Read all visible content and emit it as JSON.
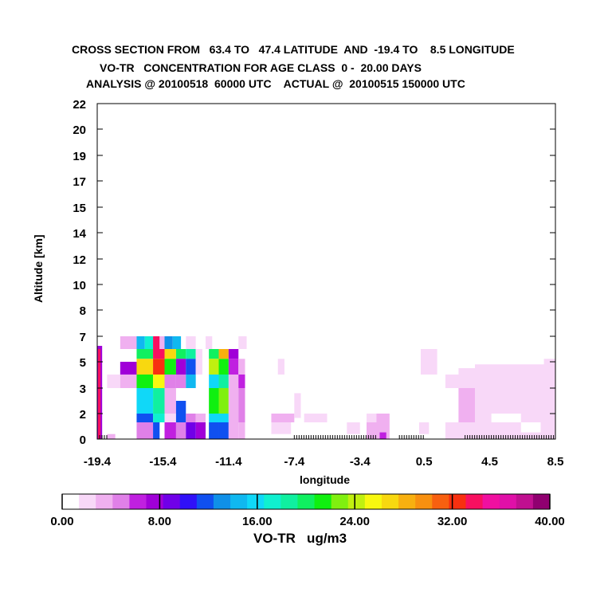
{
  "title": {
    "line1": "CROSS SECTION FROM   63.4 TO   47.4 LATITUDE  AND  -19.4 TO    8.5 LONGITUDE",
    "line2": "VO-TR   CONCENTRATION FOR AGE CLASS  0 -  20.00 DAYS",
    "line3": "ANALYSIS @ 20100518  60000 UTC    ACTUAL @  20100515 150000 UTC"
  },
  "axes": {
    "ylabel": "Altitude [km]",
    "xlabel": "longitude",
    "yticks": [
      "0",
      "1",
      "2",
      "3",
      "4",
      "5",
      "7",
      "8",
      "10",
      "12",
      "14",
      "15",
      "17",
      "19",
      "20",
      "22"
    ],
    "xticks": [
      "-19.4",
      "-15.4",
      "-11.4",
      "-7.4",
      "-3.4",
      "0.5",
      "4.5",
      "8.5"
    ]
  },
  "colorbar": {
    "label": "VO-TR   ug/m3",
    "tick_labels": [
      "0.00",
      "8.00",
      "16.00",
      "24.00",
      "32.00",
      "40.00"
    ],
    "colors": [
      "#ffffff",
      "#f8d8f8",
      "#f0b0f0",
      "#e080e8",
      "#c020e0",
      "#a000d8",
      "#7000e8",
      "#3010f8",
      "#1050f0",
      "#1090e8",
      "#10b8f0",
      "#10d8f8",
      "#10f0d0",
      "#10f0a0",
      "#10f060",
      "#10f010",
      "#80f010",
      "#c0f010",
      "#f8f810",
      "#f8d810",
      "#f8b010",
      "#f89010",
      "#f86010",
      "#f83010",
      "#f81060",
      "#f010a0",
      "#e010a8",
      "#c01090",
      "#900070"
    ]
  },
  "chart_data": {
    "type": "heatmap",
    "title": "CROSS SECTION FROM   63.4 TO   47.4 LATITUDE  AND  -19.4 TO    8.5 LONGITUDE",
    "xlabel": "longitude",
    "ylabel": "Altitude [km]",
    "xlim": [
      -19.4,
      8.5
    ],
    "ylim": [
      0,
      22
    ],
    "value_range": [
      0,
      40
    ],
    "units": "ug/m3",
    "cells": [
      {
        "x0": -19.4,
        "x1": -19.1,
        "y0": 0,
        "y1": 6.5,
        "c": "#a000d8"
      },
      {
        "x0": -19.35,
        "x1": -19.2,
        "y0": 0,
        "y1": 6.3,
        "c": "#f81060"
      },
      {
        "x0": -18.8,
        "x1": -18.3,
        "y0": 0,
        "y1": 0.3,
        "c": "#f0b0f0"
      },
      {
        "x0": -18.8,
        "x1": -18.0,
        "y0": 3,
        "y1": 4,
        "c": "#f8d8f8"
      },
      {
        "x0": -18.0,
        "x1": -17.0,
        "y0": 6.3,
        "y1": 7.1,
        "c": "#f0b0f0"
      },
      {
        "x0": -18.0,
        "x1": -17.0,
        "y0": 4,
        "y1": 5,
        "c": "#a000d8"
      },
      {
        "x0": -18.0,
        "x1": -17.0,
        "y0": 3,
        "y1": 4,
        "c": "#f0b0f0"
      },
      {
        "x0": -17.0,
        "x1": -16.5,
        "y0": 6.3,
        "y1": 7.1,
        "c": "#10b8f0"
      },
      {
        "x0": -17.0,
        "x1": -16.0,
        "y0": 5.3,
        "y1": 6.3,
        "c": "#10f060"
      },
      {
        "x0": -17.0,
        "x1": -16.0,
        "y0": 4,
        "y1": 5.3,
        "c": "#f8d810"
      },
      {
        "x0": -17.0,
        "x1": -16.0,
        "y0": 3,
        "y1": 4,
        "c": "#10f010"
      },
      {
        "x0": -17.0,
        "x1": -16.0,
        "y0": 2,
        "y1": 3,
        "c": "#10d8f8"
      },
      {
        "x0": -17.0,
        "x1": -16.0,
        "y0": 1,
        "y1": 2,
        "c": "#1050f0"
      },
      {
        "x0": -17.0,
        "x1": -16.0,
        "y0": 0,
        "y1": 1,
        "c": "#e080e8"
      },
      {
        "x0": -16.5,
        "x1": -16.0,
        "y0": 6.3,
        "y1": 7.1,
        "c": "#10f0d0"
      },
      {
        "x0": -16.0,
        "x1": -15.6,
        "y0": 6.3,
        "y1": 7.1,
        "c": "#f81060"
      },
      {
        "x0": -16.0,
        "x1": -15.3,
        "y0": 5.3,
        "y1": 6.3,
        "c": "#f81060"
      },
      {
        "x0": -16.0,
        "x1": -15.3,
        "y0": 4,
        "y1": 5.3,
        "c": "#f83010"
      },
      {
        "x0": -16.0,
        "x1": -15.3,
        "y0": 3,
        "y1": 4,
        "c": "#f8f810"
      },
      {
        "x0": -16.0,
        "x1": -15.3,
        "y0": 2,
        "y1": 3,
        "c": "#10f0a0"
      },
      {
        "x0": -16.0,
        "x1": -15.3,
        "y0": 1,
        "y1": 2,
        "c": "#10f0d0"
      },
      {
        "x0": -16.0,
        "x1": -15.6,
        "y0": 0,
        "y1": 1,
        "c": "#1050f0"
      },
      {
        "x0": -15.6,
        "x1": -15.3,
        "y0": 6.3,
        "y1": 7.1,
        "c": "#f0b0f0"
      },
      {
        "x0": -15.3,
        "x1": -14.8,
        "y0": 6.3,
        "y1": 7.1,
        "c": "#1090e8"
      },
      {
        "x0": -15.3,
        "x1": -14.6,
        "y0": 5.3,
        "y1": 6.3,
        "c": "#f8d810"
      },
      {
        "x0": -15.3,
        "x1": -14.6,
        "y0": 4,
        "y1": 5.3,
        "c": "#10f010"
      },
      {
        "x0": -15.3,
        "x1": -14.6,
        "y0": 3,
        "y1": 4,
        "c": "#e080e8"
      },
      {
        "x0": -15.3,
        "x1": -14.6,
        "y0": 2,
        "y1": 3,
        "c": "#f0b0f0"
      },
      {
        "x0": -15.3,
        "x1": -14.6,
        "y0": 1,
        "y1": 2,
        "c": "#f8d8f8"
      },
      {
        "x0": -15.3,
        "x1": -14.6,
        "y0": 0,
        "y1": 1,
        "c": "#c020e0"
      },
      {
        "x0": -14.8,
        "x1": -14.3,
        "y0": 6.3,
        "y1": 7.1,
        "c": "#10b8f0"
      },
      {
        "x0": -14.6,
        "x1": -14.0,
        "y0": 5.3,
        "y1": 6.3,
        "c": "#10f060"
      },
      {
        "x0": -14.6,
        "x1": -14.0,
        "y0": 4,
        "y1": 5.3,
        "c": "#a000d8"
      },
      {
        "x0": -14.6,
        "x1": -14.0,
        "y0": 3,
        "y1": 4,
        "c": "#e080e8"
      },
      {
        "x0": -14.6,
        "x1": -14.0,
        "y0": 1,
        "y1": 2.5,
        "c": "#1050f0"
      },
      {
        "x0": -14.6,
        "x1": -14.0,
        "y0": 0,
        "y1": 1,
        "c": "#e080e8"
      },
      {
        "x0": -14.0,
        "x1": -13.4,
        "y0": 6.3,
        "y1": 7.1,
        "c": "#f8d8f8"
      },
      {
        "x0": -14.0,
        "x1": -13.4,
        "y0": 5.3,
        "y1": 6.3,
        "c": "#10f0a0"
      },
      {
        "x0": -14.0,
        "x1": -13.4,
        "y0": 4,
        "y1": 5.3,
        "c": "#1050f0"
      },
      {
        "x0": -14.0,
        "x1": -13.4,
        "y0": 3,
        "y1": 4,
        "c": "#10b8f0"
      },
      {
        "x0": -14.0,
        "x1": -13.4,
        "y0": 1,
        "y1": 2,
        "c": "#e080e8"
      },
      {
        "x0": -14.0,
        "x1": -13.4,
        "y0": 0,
        "y1": 1,
        "c": "#7000e8"
      },
      {
        "x0": -13.4,
        "x1": -13.0,
        "y0": 5.3,
        "y1": 6.3,
        "c": "#f8d8f8"
      },
      {
        "x0": -13.4,
        "x1": -13.0,
        "y0": 4,
        "y1": 5.3,
        "c": "#f8d8f8"
      },
      {
        "x0": -13.4,
        "x1": -12.8,
        "y0": 1,
        "y1": 2,
        "c": "#f0b0f0"
      },
      {
        "x0": -13.4,
        "x1": -12.8,
        "y0": 0,
        "y1": 1,
        "c": "#a000d8"
      },
      {
        "x0": -12.8,
        "x1": -12.4,
        "y0": 6.3,
        "y1": 7.1,
        "c": "#f8d8f8"
      },
      {
        "x0": -12.6,
        "x1": -12.0,
        "y0": 5.3,
        "y1": 6.3,
        "c": "#10f060"
      },
      {
        "x0": -12.6,
        "x1": -12.0,
        "y0": 4,
        "y1": 5.3,
        "c": "#c0f010"
      },
      {
        "x0": -12.6,
        "x1": -12.0,
        "y0": 3,
        "y1": 4,
        "c": "#10d8f8"
      },
      {
        "x0": -12.6,
        "x1": -12.0,
        "y0": 2,
        "y1": 3,
        "c": "#10f010"
      },
      {
        "x0": -12.6,
        "x1": -12.0,
        "y0": 1,
        "y1": 2,
        "c": "#10d8f8"
      },
      {
        "x0": -12.6,
        "x1": -12.0,
        "y0": 0,
        "y1": 1,
        "c": "#1050f0"
      },
      {
        "x0": -12.0,
        "x1": -11.4,
        "y0": 5.3,
        "y1": 6.3,
        "c": "#f8b010"
      },
      {
        "x0": -12.0,
        "x1": -11.4,
        "y0": 4,
        "y1": 5.3,
        "c": "#10f010"
      },
      {
        "x0": -12.0,
        "x1": -11.4,
        "y0": 3,
        "y1": 4,
        "c": "#10f0a0"
      },
      {
        "x0": -12.0,
        "x1": -11.4,
        "y0": 2,
        "y1": 3,
        "c": "#80f010"
      },
      {
        "x0": -12.0,
        "x1": -11.4,
        "y0": 1,
        "y1": 2,
        "c": "#10d8f8"
      },
      {
        "x0": -12.0,
        "x1": -11.4,
        "y0": 0,
        "y1": 1,
        "c": "#1050f0"
      },
      {
        "x0": -11.4,
        "x1": -10.8,
        "y0": 5.3,
        "y1": 6.3,
        "c": "#a000d8"
      },
      {
        "x0": -11.4,
        "x1": -10.8,
        "y0": 4,
        "y1": 5.3,
        "c": "#c020e0"
      },
      {
        "x0": -11.4,
        "x1": -10.8,
        "y0": 2,
        "y1": 4,
        "c": "#f0b0f0"
      },
      {
        "x0": -11.4,
        "x1": -10.8,
        "y0": 0,
        "y1": 2,
        "c": "#f0b0f0"
      },
      {
        "x0": -10.8,
        "x1": -10.4,
        "y0": 4,
        "y1": 5.3,
        "c": "#f0b0f0"
      },
      {
        "x0": -10.8,
        "x1": -10.4,
        "y0": 3,
        "y1": 4,
        "c": "#c020e0"
      },
      {
        "x0": -10.8,
        "x1": -10.4,
        "y0": 1,
        "y1": 3,
        "c": "#e080e8"
      },
      {
        "x0": -10.8,
        "x1": -10.4,
        "y0": 0,
        "y1": 1,
        "c": "#f0b0f0"
      },
      {
        "x0": -10.8,
        "x1": -10.3,
        "y0": 6.3,
        "y1": 7.1,
        "c": "#f8d8f8"
      },
      {
        "x0": -8.4,
        "x1": -8.0,
        "y0": 4,
        "y1": 5.3,
        "c": "#f8d8f8"
      },
      {
        "x0": -8.8,
        "x1": -7.4,
        "y0": 1,
        "y1": 2,
        "c": "#f0b0f0"
      },
      {
        "x0": -8.8,
        "x1": -7.6,
        "y0": 0.3,
        "y1": 1,
        "c": "#f8d8f8"
      },
      {
        "x0": -7.4,
        "x1": -7.0,
        "y0": 1.5,
        "y1": 2.8,
        "c": "#f8d8f8"
      },
      {
        "x0": -6.8,
        "x1": -5.4,
        "y0": 1,
        "y1": 2,
        "c": "#f8d8f8"
      },
      {
        "x0": -4.2,
        "x1": -3.4,
        "y0": 0.3,
        "y1": 1,
        "c": "#f8d8f8"
      },
      {
        "x0": -3.0,
        "x1": -2.4,
        "y0": 1,
        "y1": 2,
        "c": "#f8d8f8"
      },
      {
        "x0": -2.4,
        "x1": -1.6,
        "y0": 1,
        "y1": 2,
        "c": "#f0b0f0"
      },
      {
        "x0": -3.0,
        "x1": -1.6,
        "y0": 0,
        "y1": 1,
        "c": "#f0b0f0"
      },
      {
        "x0": -2.2,
        "x1": -1.8,
        "y0": 0,
        "y1": 0.4,
        "c": "#c020e0"
      },
      {
        "x0": 0.2,
        "x1": 0.8,
        "y0": 0.3,
        "y1": 1,
        "c": "#f8d8f8"
      },
      {
        "x0": 0.3,
        "x1": 1.3,
        "y0": 4,
        "y1": 6.3,
        "c": "#f8d8f8"
      },
      {
        "x0": 1.8,
        "x1": 2.6,
        "y0": 3,
        "y1": 4,
        "c": "#f8d8f8"
      },
      {
        "x0": 2.6,
        "x1": 3.6,
        "y0": 1,
        "y1": 4,
        "c": "#f0b0f0"
      },
      {
        "x0": 2.6,
        "x1": 8.5,
        "y0": 3,
        "y1": 4.5,
        "c": "#f8d8f8"
      },
      {
        "x0": 3.6,
        "x1": 8.5,
        "y0": 1,
        "y1": 3,
        "c": "#f8d8f8"
      },
      {
        "x0": 1.8,
        "x1": 8.5,
        "y0": 0,
        "y1": 1,
        "c": "#f8d8f8"
      },
      {
        "x0": 3.6,
        "x1": 8.5,
        "y0": 4,
        "y1": 4.8,
        "c": "#f8d8f8"
      },
      {
        "x0": 7.8,
        "x1": 8.5,
        "y0": 4.5,
        "y1": 5.3,
        "c": "#f8d8f8"
      },
      {
        "x0": 4.6,
        "x1": 6.4,
        "y0": 1,
        "y1": 2,
        "c": "#ffffff"
      },
      {
        "x0": 6.4,
        "x1": 7.6,
        "y0": 0.4,
        "y1": 1,
        "c": "#ffffff"
      }
    ],
    "tick_hatch_ranges": [
      [
        -19.4,
        -18.8
      ],
      [
        -7.4,
        -2.4
      ],
      [
        -1.0,
        0.5
      ],
      [
        3.0,
        8.5
      ]
    ]
  }
}
